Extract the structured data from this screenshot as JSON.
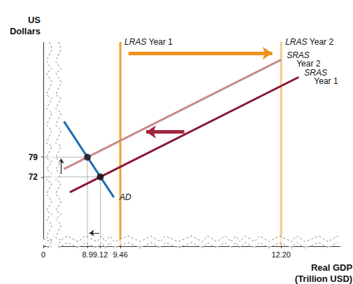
{
  "chart_data": {
    "type": "line",
    "x_label": "Real GDP\n(Trillion USD)",
    "y_label": "US\nDollars",
    "xlim": [
      0,
      13.2
    ],
    "xticks": [
      0,
      8.9,
      9.12,
      9.46,
      {
        "value": 12.2,
        "label": "12.20"
      }
    ],
    "x_break": [
      0.1,
      8.4
    ],
    "ylim": [
      0,
      120
    ],
    "yticks": [
      72,
      79
    ],
    "y_break": [
      0.5,
      50
    ],
    "grid": false,
    "series": [
      {
        "name": "AD",
        "color": "#1f6db3",
        "x": [
          8.5,
          9.35
        ],
        "values": [
          91.7,
          64.7
        ]
      },
      {
        "name": "SRAS Year 1",
        "color": "#8b1538",
        "x": [
          8.6,
          12.5
        ],
        "values": [
          66.5,
          107.5
        ]
      },
      {
        "name": "SRAS Year 2",
        "color": "#c98a8e",
        "x": [
          8.5,
          12.2
        ],
        "values": [
          74.8,
          113.7
        ]
      }
    ],
    "vertical_lines": [
      {
        "name": "LRAS Year 1",
        "x": 9.46,
        "color": "#f0a030"
      },
      {
        "name": "LRAS Year 2",
        "x": 12.2,
        "color": "#f5c98a"
      }
    ],
    "points": [
      {
        "x": 8.9,
        "y": 79,
        "color": "#111111",
        "marker": "circle"
      },
      {
        "x": 9.12,
        "y": 72,
        "color": "#111111",
        "marker": "circle"
      }
    ],
    "arrows": [
      {
        "from": [
          9.6,
          116
        ],
        "to": [
          12.05,
          116
        ],
        "color": "#f0901e",
        "line_style": "thick"
      },
      {
        "from": [
          10.55,
          88
        ],
        "to": [
          9.9,
          88
        ],
        "color": "#a0263f",
        "line_style": "thick"
      },
      {
        "from": [
          8.45,
          73
        ],
        "to": [
          8.45,
          78.5
        ],
        "color": "#222222",
        "line_style": "thin"
      },
      {
        "from": [
          9.1,
          52
        ],
        "to": [
          8.93,
          52
        ],
        "color": "#222222",
        "line_style": "thin"
      }
    ]
  }
}
